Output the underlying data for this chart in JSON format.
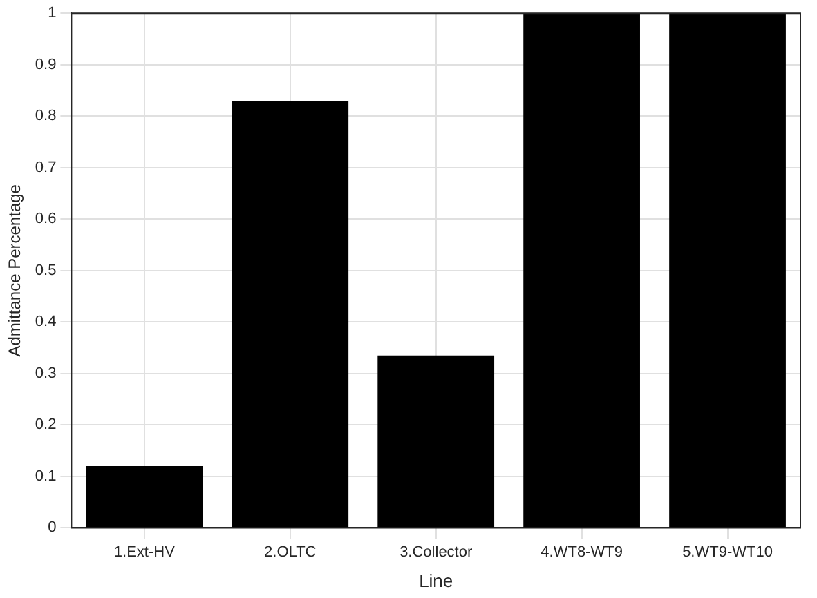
{
  "chart_data": {
    "type": "bar",
    "xlabel": "Line",
    "ylabel": "Admittance Percentage",
    "categories": [
      "1.Ext-HV",
      "2.OLTC",
      "3.Collector",
      "4.WT8-WT9",
      "5.WT9-WT10"
    ],
    "values": [
      0.12,
      0.83,
      0.335,
      1,
      1
    ],
    "color": "#000000",
    "ylim": [
      0,
      1
    ],
    "yticks": [
      0,
      0.1,
      0.2,
      0.3,
      0.4,
      0.5,
      0.6,
      0.7,
      0.8,
      0.9,
      1
    ],
    "grid": true
  }
}
